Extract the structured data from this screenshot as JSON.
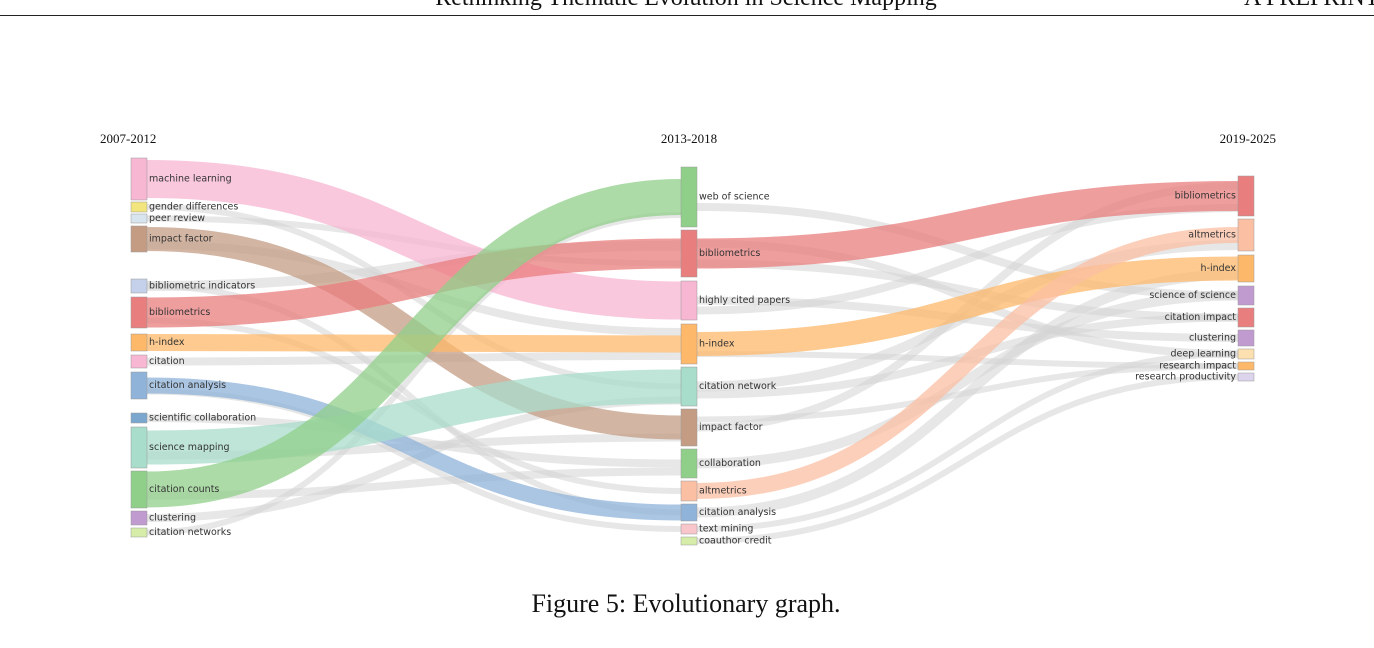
{
  "header": {
    "title": "Rethinking Thematic Evolution in Science Mapping",
    "running_head": "A PREPRINT"
  },
  "figure": {
    "columns": [
      {
        "period": "2007-2012",
        "nodes": [
          "machine learning",
          "gender differences",
          "peer review",
          "impact factor",
          "bibliometric indicators",
          "bibliometrics",
          "h-index",
          "citation",
          "citation analysis",
          "scientific collaboration",
          "science mapping",
          "citation counts",
          "clustering",
          "citation networks"
        ]
      },
      {
        "period": "2013-2018",
        "nodes": [
          "web of science",
          "bibliometrics",
          "highly cited papers",
          "h-index",
          "citation network",
          "impact factor",
          "collaboration",
          "altmetrics",
          "citation analysis",
          "text mining",
          "coauthor credit"
        ]
      },
      {
        "period": "2019-2025",
        "nodes": [
          "bibliometrics",
          "altmetrics",
          "h-index",
          "science of science",
          "citation impact",
          "clustering",
          "deep learning",
          "research impact",
          "research productivity"
        ]
      }
    ],
    "caption": "Figure 5: Evolutionary graph."
  }
}
